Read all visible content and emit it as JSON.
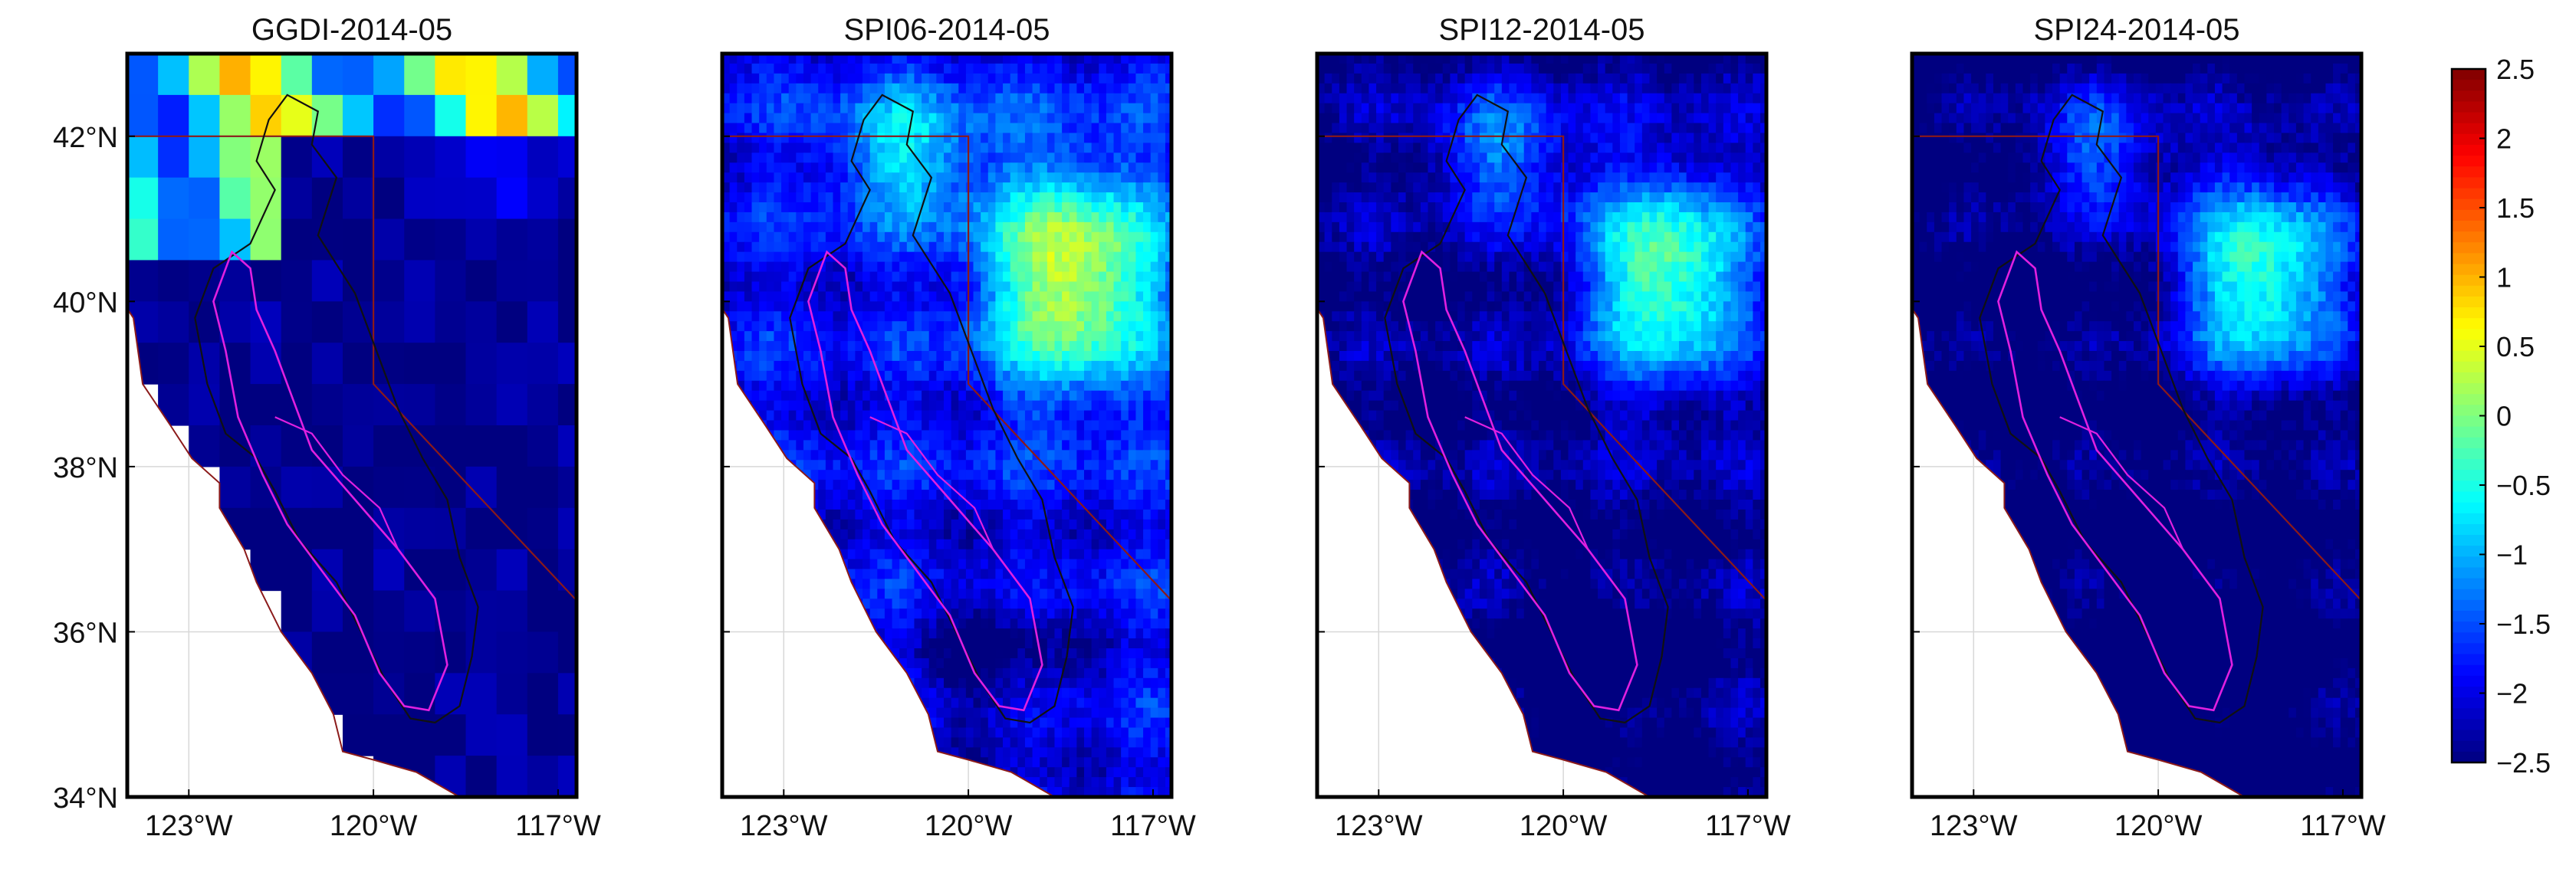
{
  "panels": [
    {
      "title": "GGDI-2014-05",
      "style": "grid"
    },
    {
      "title": "SPI06-2014-05",
      "style": "smooth",
      "bias": 0.0
    },
    {
      "title": "SPI12-2014-05",
      "style": "smooth",
      "bias": -0.55
    },
    {
      "title": "SPI24-2014-05",
      "style": "smooth",
      "bias": -0.75
    }
  ],
  "lat_ticks": [
    "34°N",
    "36°N",
    "38°N",
    "40°N",
    "42°N"
  ],
  "lon_ticks": [
    "123°W",
    "120°W",
    "117°W"
  ],
  "colorbar": {
    "ticks": [
      "2.5",
      "2",
      "1.5",
      "1",
      "0.5",
      "0",
      "−0.5",
      "−1",
      "−1.5",
      "−2",
      "−2.5"
    ],
    "min": -2.5,
    "max": 2.5,
    "colormap": "jet"
  },
  "colors": {
    "ocean": "#ffffff",
    "state_border": "#8b1a1a",
    "basin_outline": "#111111",
    "valley_outline": "#e020e0",
    "grid": "#d8d8d8"
  }
}
